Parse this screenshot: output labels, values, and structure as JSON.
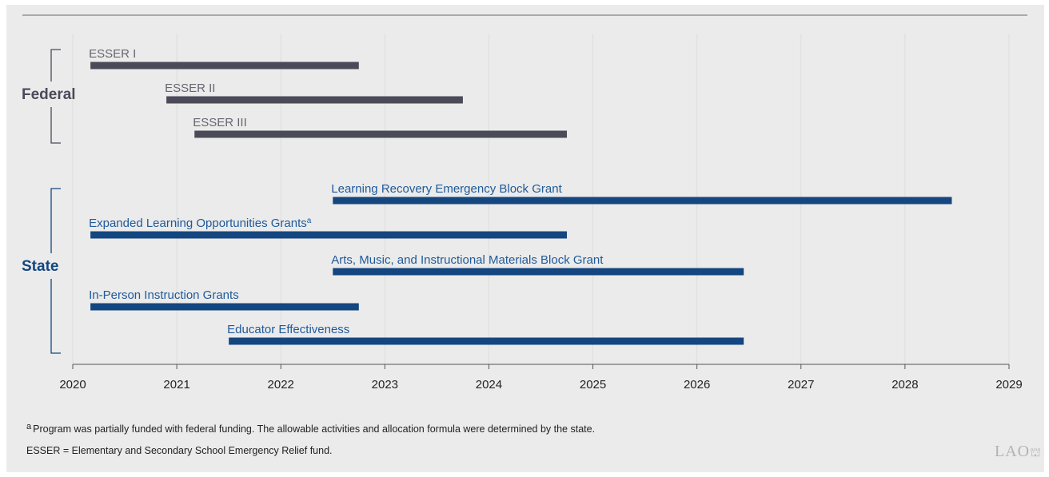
{
  "chart_data": {
    "type": "gantt",
    "x_ticks": [
      "2020",
      "2021",
      "2022",
      "2023",
      "2024",
      "2025",
      "2026",
      "2027",
      "2028",
      "2029"
    ],
    "xlim": [
      2020,
      2029
    ],
    "grid": true,
    "groups": [
      {
        "name": "Federal",
        "color": "#4b4a58",
        "label_color": "#4b4a58",
        "bar_label_color": "#666670"
      },
      {
        "name": "State",
        "color": "#14467f",
        "label_color": "#14467f",
        "bar_label_color": "#1f5a9a"
      }
    ],
    "bars": [
      {
        "label": "ESSER I",
        "group": "Federal",
        "start": 2020.17,
        "end": 2022.75
      },
      {
        "label": "ESSER II",
        "group": "Federal",
        "start": 2020.9,
        "end": 2023.75
      },
      {
        "label": "ESSER III",
        "group": "Federal",
        "start": 2021.17,
        "end": 2024.75
      },
      {
        "label": "Learning Recovery Emergency Block Grant",
        "group": "State",
        "start": 2022.5,
        "end": 2028.45
      },
      {
        "label": "Expanded Learning Opportunities Grants",
        "superscript": "a",
        "group": "State",
        "start": 2020.17,
        "end": 2024.75
      },
      {
        "label": "Arts, Music, and Instructional Materials Block Grant",
        "group": "State",
        "start": 2022.5,
        "end": 2026.45
      },
      {
        "label": "In-Person Instruction Grants",
        "group": "State",
        "start": 2020.17,
        "end": 2022.75
      },
      {
        "label": "Educator Effectiveness",
        "group": "State",
        "start": 2021.5,
        "end": 2026.45
      }
    ]
  },
  "footnotes": {
    "a_marker": "a",
    "a_text": "Program was partially funded with federal funding. The allowable activities and allocation formula were determined by the state.",
    "abbrev": "ESSER = Elementary and Secondary School Emergency Relief fund."
  },
  "logo": {
    "text": "LAO"
  }
}
